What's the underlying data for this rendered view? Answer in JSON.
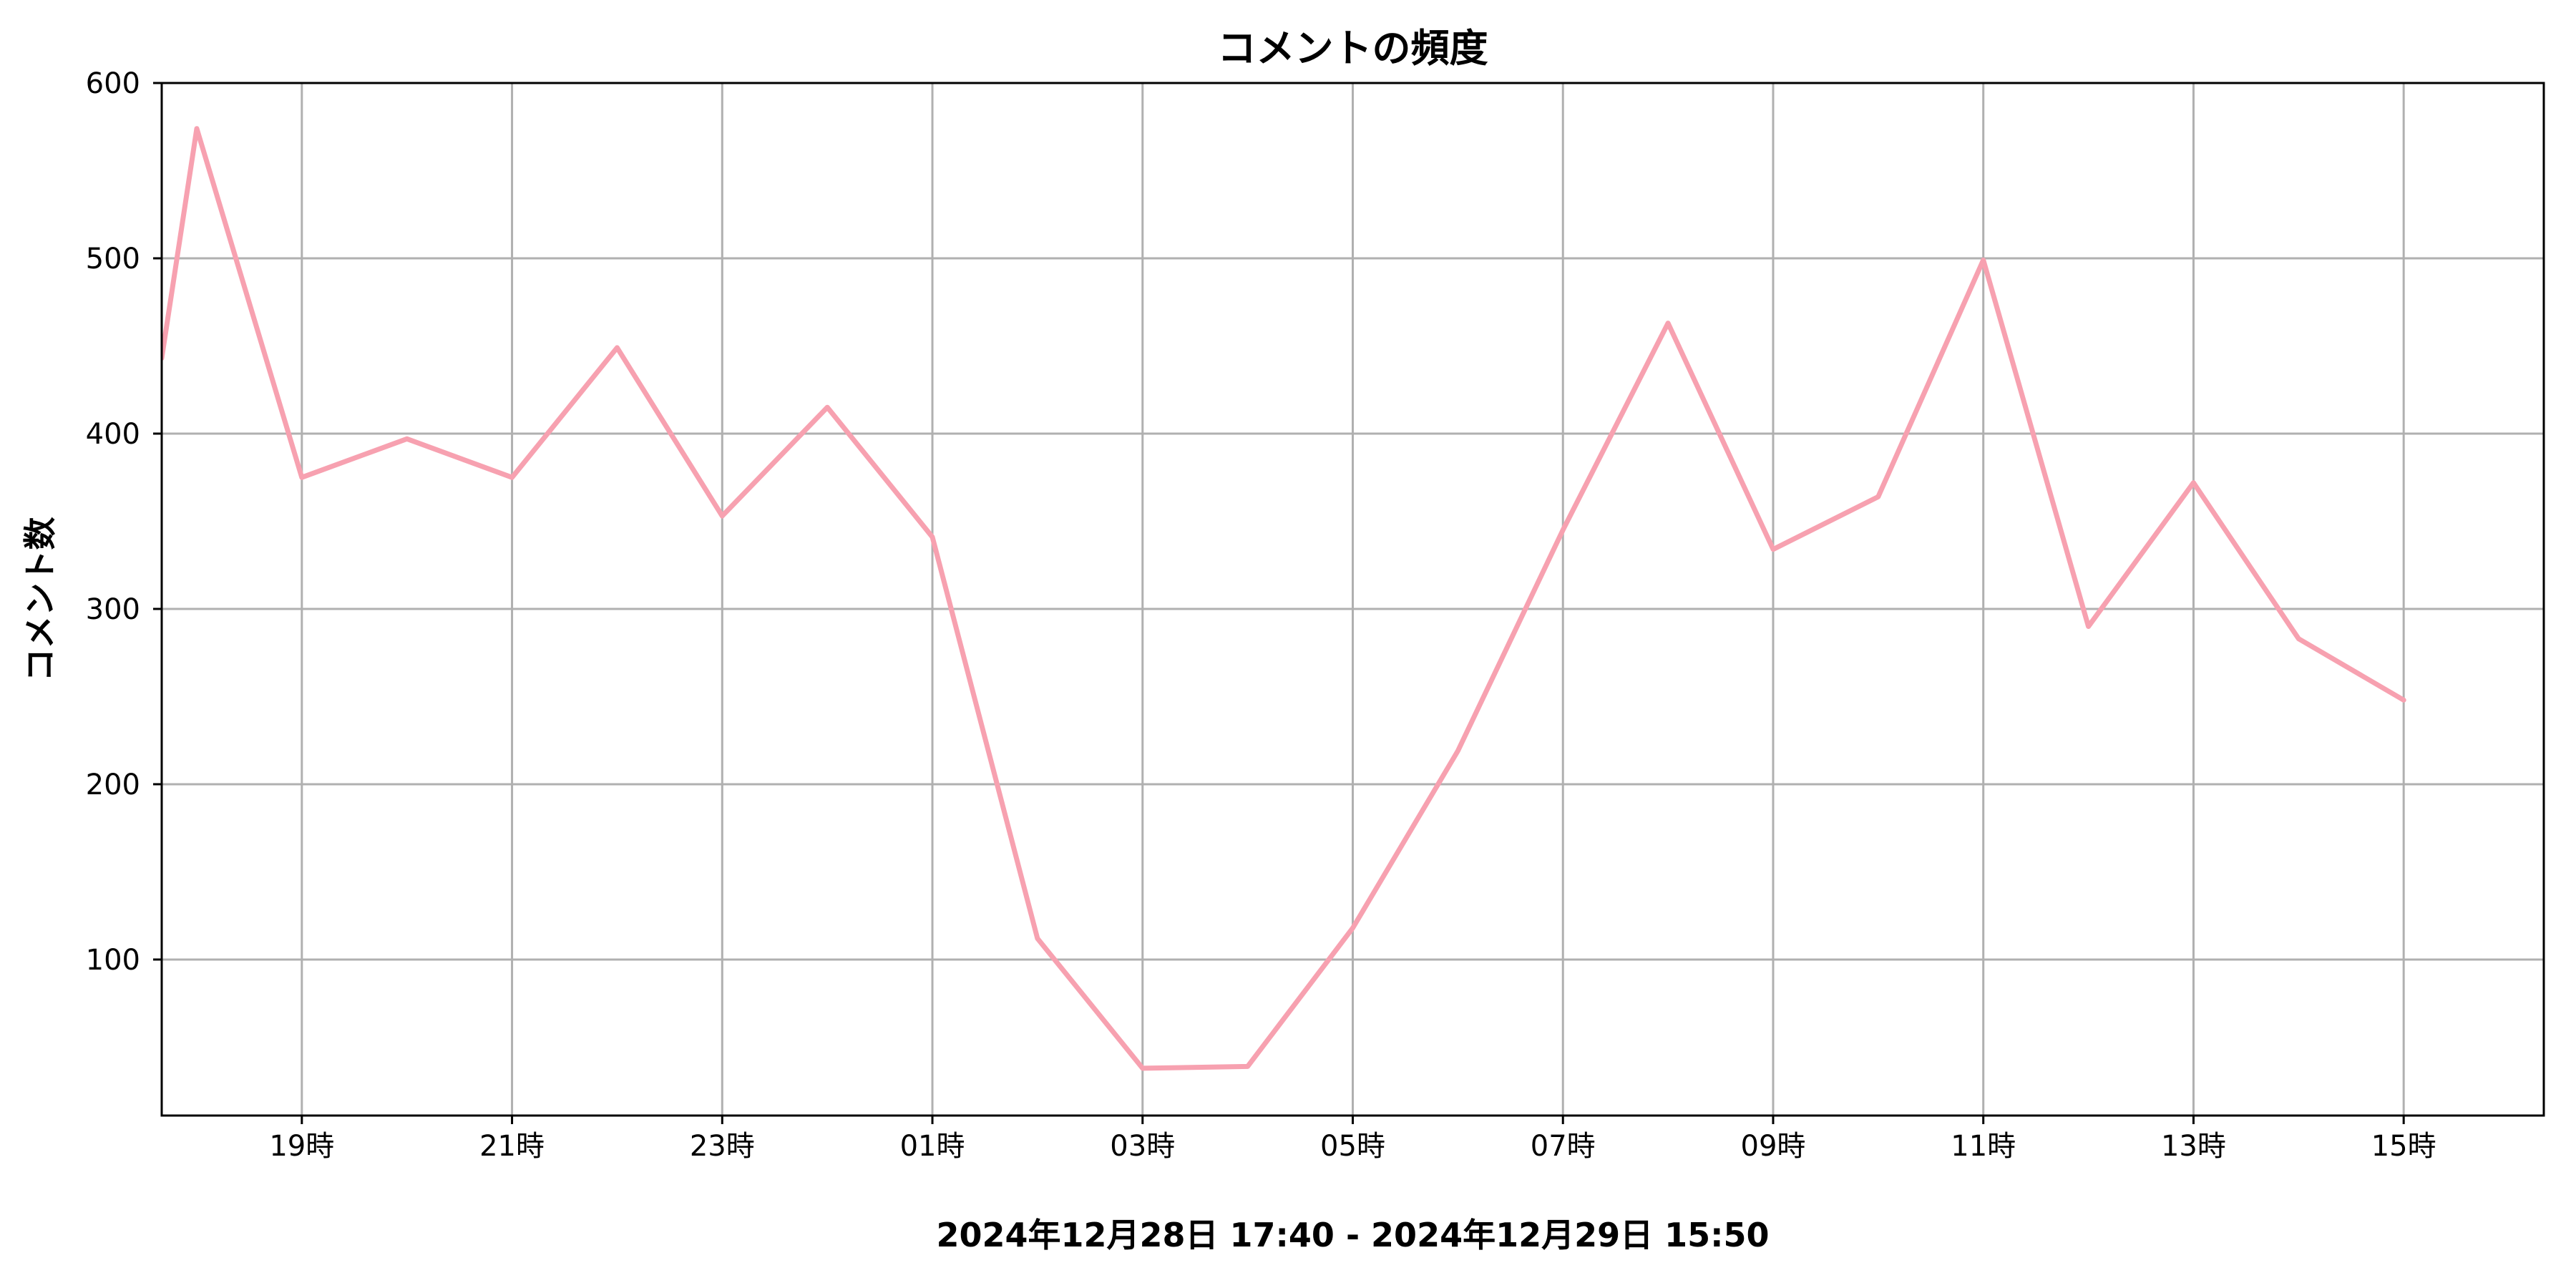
{
  "chart_data": {
    "type": "line",
    "title": "コメントの頻度",
    "xlabel": "2024年12月28日 17:40 - 2024年12月29日 15:50",
    "ylabel": "コメント数",
    "x": [
      "2024-12-28 17:40",
      "2024-12-28 18:00",
      "2024-12-28 19:00",
      "2024-12-28 20:00",
      "2024-12-28 21:00",
      "2024-12-28 22:00",
      "2024-12-28 23:00",
      "2024-12-29 00:00",
      "2024-12-29 01:00",
      "2024-12-29 02:00",
      "2024-12-29 03:00",
      "2024-12-29 04:00",
      "2024-12-29 05:00",
      "2024-12-29 06:00",
      "2024-12-29 07:00",
      "2024-12-29 08:00",
      "2024-12-29 09:00",
      "2024-12-29 10:00",
      "2024-12-29 11:00",
      "2024-12-29 12:00",
      "2024-12-29 13:00",
      "2024-12-29 14:00",
      "2024-12-29 15:00"
    ],
    "series": [
      {
        "color": "#f7a1b0",
        "values": [
          443,
          574,
          375,
          397,
          375,
          449,
          353,
          415,
          341,
          112,
          38,
          39,
          118,
          219,
          345,
          463,
          334,
          364,
          499,
          290,
          372,
          283,
          248
        ]
      }
    ],
    "xticks": [
      {
        "value": "2024-12-28 19:00",
        "label": "19時"
      },
      {
        "value": "2024-12-28 21:00",
        "label": "21時"
      },
      {
        "value": "2024-12-28 23:00",
        "label": "23時"
      },
      {
        "value": "2024-12-29 01:00",
        "label": "01時"
      },
      {
        "value": "2024-12-29 03:00",
        "label": "03時"
      },
      {
        "value": "2024-12-29 05:00",
        "label": "05時"
      },
      {
        "value": "2024-12-29 07:00",
        "label": "07時"
      },
      {
        "value": "2024-12-29 09:00",
        "label": "09時"
      },
      {
        "value": "2024-12-29 11:00",
        "label": "11時"
      },
      {
        "value": "2024-12-29 13:00",
        "label": "13時"
      },
      {
        "value": "2024-12-29 15:00",
        "label": "15時"
      }
    ],
    "yticks": [
      100,
      200,
      300,
      400,
      500,
      600
    ],
    "xlim": [
      "2024-12-28 17:40",
      "2024-12-29 16:20"
    ],
    "ylim": [
      11,
      600
    ],
    "grid": true,
    "legend": "none"
  }
}
